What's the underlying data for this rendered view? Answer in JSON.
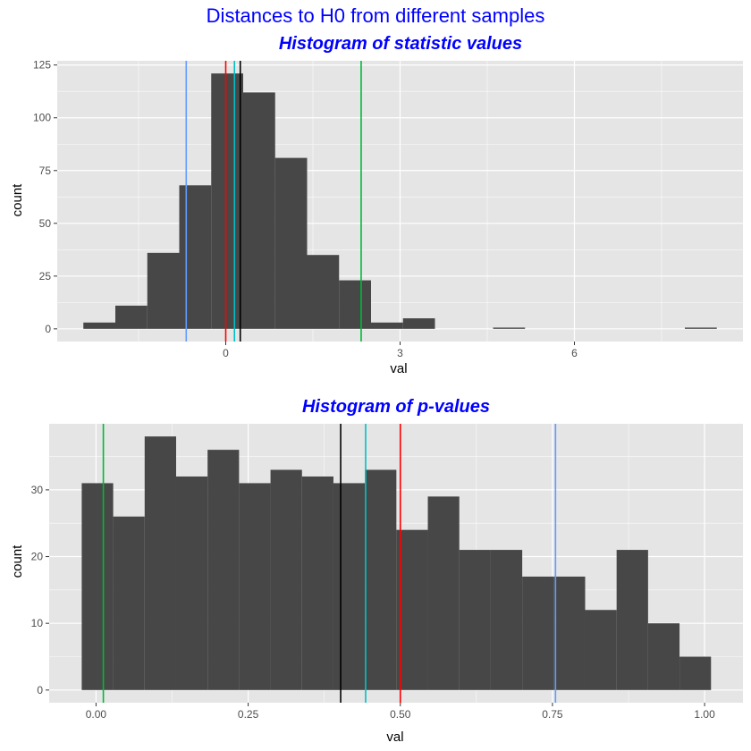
{
  "figure_title": "Distances to H0 from different samples",
  "colors": {
    "panel_bg": "#e5e5e5",
    "grid_major": "#ffffff",
    "bar": "#474747",
    "title": "#0000ff"
  },
  "chart_data": [
    {
      "type": "bar",
      "title": "Histogram of statistic values",
      "xlabel": "val",
      "ylabel": "count",
      "xlim": [
        -2.9,
        8.9
      ],
      "ylim": [
        -6,
        127
      ],
      "xticks": [
        0,
        3,
        6
      ],
      "yticks": [
        0,
        25,
        50,
        75,
        100,
        125
      ],
      "bin_width": 0.55,
      "bins": [
        {
          "start": -2.45,
          "count": 3
        },
        {
          "start": -1.9,
          "count": 11
        },
        {
          "start": -1.35,
          "count": 36
        },
        {
          "start": -0.8,
          "count": 68
        },
        {
          "start": -0.25,
          "count": 121
        },
        {
          "start": 0.3,
          "count": 112
        },
        {
          "start": 0.85,
          "count": 81
        },
        {
          "start": 1.4,
          "count": 35
        },
        {
          "start": 1.95,
          "count": 23
        },
        {
          "start": 2.5,
          "count": 3
        },
        {
          "start": 3.05,
          "count": 5
        },
        {
          "start": 4.6,
          "count": 0.6
        },
        {
          "start": 7.9,
          "count": 0.6
        }
      ],
      "vlines": [
        {
          "x": -0.68,
          "color": "#619cff"
        },
        {
          "x": 0.0,
          "color": "#ff0000"
        },
        {
          "x": 0.15,
          "color": "#00bfc4"
        },
        {
          "x": 0.25,
          "color": "#000000"
        },
        {
          "x": 2.33,
          "color": "#00ba38"
        }
      ]
    },
    {
      "type": "bar",
      "title": "Histogram of p-values",
      "xlabel": "val",
      "ylabel": "count",
      "xlim": [
        -0.077,
        1.063
      ],
      "ylim": [
        -1.9,
        39.9
      ],
      "xticks": [
        0.0,
        0.25,
        0.5,
        0.75,
        1.0
      ],
      "yticks": [
        0,
        10,
        20,
        30
      ],
      "bin_width": 0.0517,
      "bins": [
        {
          "start": -0.0235,
          "count": 31
        },
        {
          "start": 0.0282,
          "count": 26
        },
        {
          "start": 0.0799,
          "count": 38
        },
        {
          "start": 0.1316,
          "count": 32
        },
        {
          "start": 0.1833,
          "count": 36
        },
        {
          "start": 0.235,
          "count": 31
        },
        {
          "start": 0.2867,
          "count": 33
        },
        {
          "start": 0.3384,
          "count": 32
        },
        {
          "start": 0.3901,
          "count": 31
        },
        {
          "start": 0.4418,
          "count": 33
        },
        {
          "start": 0.4935,
          "count": 24
        },
        {
          "start": 0.5452,
          "count": 29
        },
        {
          "start": 0.5969,
          "count": 21
        },
        {
          "start": 0.6486,
          "count": 21
        },
        {
          "start": 0.7003,
          "count": 17
        },
        {
          "start": 0.752,
          "count": 17
        },
        {
          "start": 0.8037,
          "count": 12
        },
        {
          "start": 0.8554,
          "count": 21
        },
        {
          "start": 0.9071,
          "count": 10
        },
        {
          "start": 0.9588,
          "count": 5
        }
      ],
      "vlines": [
        {
          "x": 0.012,
          "color": "#00ba38"
        },
        {
          "x": 0.402,
          "color": "#000000"
        },
        {
          "x": 0.443,
          "color": "#00bfc4"
        },
        {
          "x": 0.5,
          "color": "#ff0000"
        },
        {
          "x": 0.755,
          "color": "#619cff"
        }
      ]
    }
  ]
}
